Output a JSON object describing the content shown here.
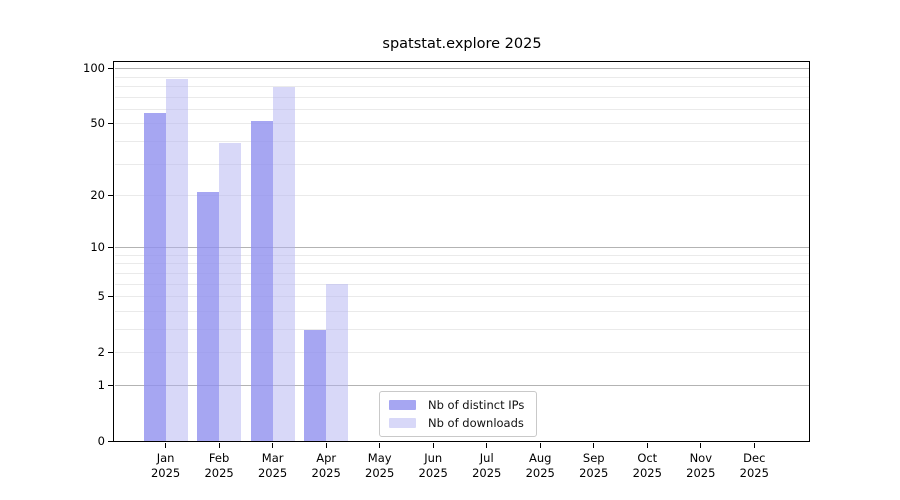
{
  "figure": {
    "background": "#ffffff",
    "frame_color": "#000000"
  },
  "chart_data": {
    "type": "bar",
    "title": "spatstat.explore 2025",
    "categories": [
      "Jan 2025",
      "Feb 2025",
      "Mar 2025",
      "Apr 2025",
      "May 2025",
      "Jun 2025",
      "Jul 2025",
      "Aug 2025",
      "Sep 2025",
      "Oct 2025",
      "Nov 2025",
      "Dec 2025"
    ],
    "series": [
      {
        "name": "Nb of distinct IPs",
        "fill": "rgba(144,144,239,0.8)",
        "legend_color": "#a6a6f2",
        "values": [
          57,
          21,
          52,
          3,
          0,
          0,
          0,
          0,
          0,
          0,
          0,
          0
        ]
      },
      {
        "name": "Nb of downloads",
        "fill": "rgba(177,177,241,0.5)",
        "legend_color": "#d8d8f8",
        "values": [
          88,
          39,
          79,
          6,
          0,
          0,
          0,
          0,
          0,
          0,
          0,
          0
        ]
      }
    ],
    "xlabel": "",
    "ylabel": "",
    "yscale": "log10(1+x)",
    "ylim": [
      0,
      108
    ],
    "yticks": [
      0,
      1,
      2,
      5,
      10,
      20,
      50,
      100
    ],
    "gridlines": {
      "minor": [
        2,
        3,
        4,
        5,
        6,
        7,
        8,
        9,
        20,
        30,
        40,
        50,
        60,
        70,
        80,
        90
      ],
      "major": [
        1,
        10,
        100
      ],
      "minor_color": "#eaeaea",
      "major_color": "#b3b3b3"
    },
    "legend_position": "inside-bottom-center",
    "grid": "horizontal"
  }
}
